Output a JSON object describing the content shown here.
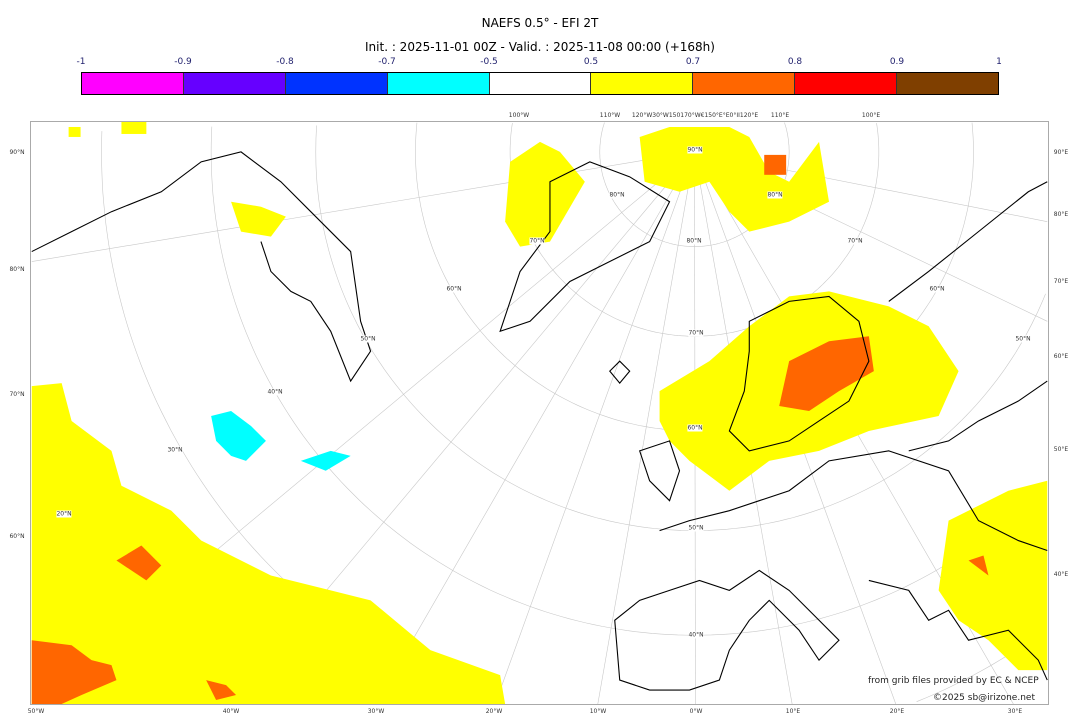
{
  "title": "NAEFS 0.5° - EFI 2T",
  "subtitle": "Init. : 2025-11-01 00Z - Valid. : 2025-11-08 00:00 (+168h)",
  "colorbar": {
    "ticks": [
      "-1",
      "-0.9",
      "-0.8",
      "-0.7",
      "-0.5",
      "0.5",
      "0.7",
      "0.8",
      "0.9",
      "1"
    ],
    "colors": [
      "#ff00ff",
      "#6600ff",
      "#0033ff",
      "#00ffff",
      "#ffffff",
      "#ffff00",
      "#ff6600",
      "#ff0000",
      "#7f3f00"
    ]
  },
  "axes": {
    "left": [
      "90°N",
      "80°N",
      "70°N",
      "60°N"
    ],
    "right": [
      "90°E",
      "80°E",
      "70°E",
      "60°E",
      "50°E",
      "40°E"
    ],
    "bottom": [
      "50°W",
      "40°W",
      "30°W",
      "20°W",
      "10°W",
      "0°W",
      "10°E",
      "20°E",
      "30°E"
    ],
    "top": [
      "100°W",
      "110°W",
      "120°W30°W150170°W€150°E°E0°II120°E",
      "110°E",
      "100°E"
    ]
  },
  "grid_labels": [
    "90°N",
    "80°N",
    "80°N",
    "70°N",
    "80°N",
    "70°N",
    "60°N",
    "60°N",
    "50°N",
    "50°N",
    "70°N",
    "40°N",
    "60°N",
    "30°N",
    "50°N",
    "20°N",
    "40°N"
  ],
  "credits": {
    "source": "from grib files provided by EC & NCEP",
    "copyright": "©2025 sb@irizone.net"
  }
}
